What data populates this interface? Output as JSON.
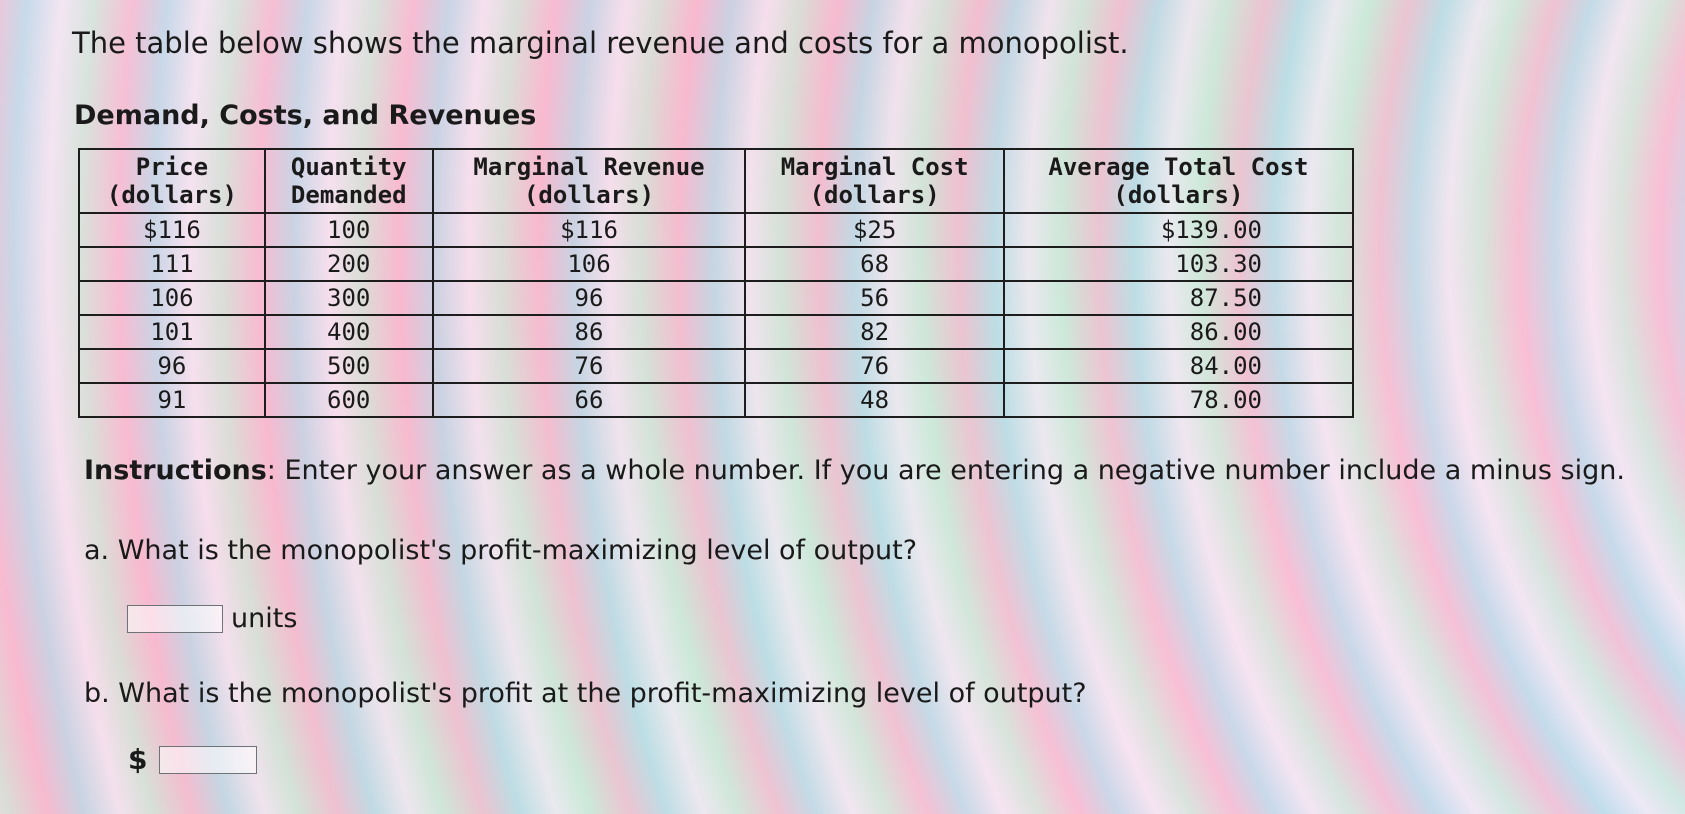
{
  "intro_text": "The table below shows the marginal revenue and costs for a monopolist.",
  "table": {
    "title": "Demand, Costs, and Revenues",
    "headers": [
      {
        "line1": "Price",
        "line2": "(dollars)"
      },
      {
        "line1": "Quantity",
        "line2": "Demanded"
      },
      {
        "line1": "Marginal Revenue",
        "line2": "(dollars)"
      },
      {
        "line1": "Marginal Cost",
        "line2": "(dollars)"
      },
      {
        "line1": "Average Total Cost",
        "line2": "(dollars)"
      }
    ],
    "rows": [
      [
        "$116",
        "100",
        "$116",
        "$25",
        "$139.00"
      ],
      [
        "111",
        "200",
        "106",
        "68",
        "103.30"
      ],
      [
        "106",
        "300",
        "96",
        "56",
        "87.50"
      ],
      [
        "101",
        "400",
        "86",
        "82",
        "86.00"
      ],
      [
        "96",
        "500",
        "76",
        "76",
        "84.00"
      ],
      [
        "91",
        "600",
        "66",
        "48",
        "78.00"
      ]
    ]
  },
  "instructions": {
    "label": "Instructions",
    "text": ": Enter your answer as a whole number. If you are entering a negative number include a minus sign."
  },
  "question_a": {
    "text": "a. What is the monopolist's profit-maximizing level of output?",
    "input_value": "",
    "unit": "units"
  },
  "question_b": {
    "text": "b. What is the monopolist's profit at the profit-maximizing level of output?",
    "prefix": "$",
    "input_value": ""
  }
}
